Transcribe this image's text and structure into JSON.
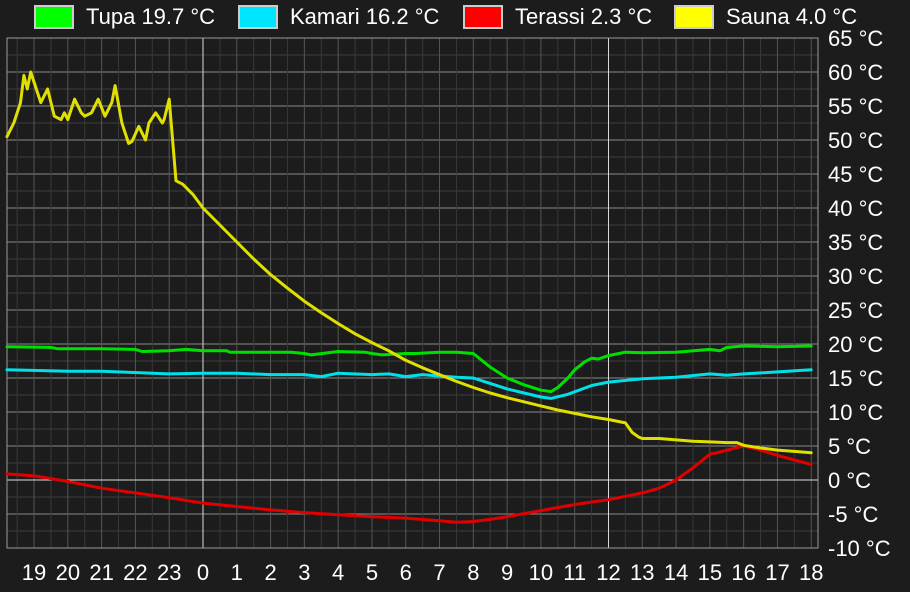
{
  "chart_data": {
    "type": "line",
    "title": "",
    "xlabel": "",
    "ylabel": "",
    "y_unit": "°C",
    "ylim": [
      -10,
      65
    ],
    "y_ticks": [
      "65 °C",
      "60 °C",
      "55 °C",
      "50 °C",
      "45 °C",
      "40 °C",
      "35 °C",
      "30 °C",
      "25 °C",
      "20 °C",
      "15 °C",
      "10 °C",
      "5 °C",
      "0 °C",
      "-5 °C",
      "-10 °C"
    ],
    "x_ticks": [
      "19",
      "20",
      "21",
      "22",
      "23",
      "0",
      "1",
      "2",
      "3",
      "4",
      "5",
      "6",
      "7",
      "8",
      "9",
      "10",
      "11",
      "12",
      "13",
      "14",
      "15",
      "16",
      "17",
      "18"
    ],
    "x_unit": "hour of day (continuous timeline from 18 to 18 next day)",
    "xlim": [
      -5.8,
      18.2
    ],
    "grid": true,
    "legend_position": "top",
    "series": [
      {
        "name": "Tupa",
        "legend": "Tupa 19.7 °C",
        "color": "#00e000",
        "swatch": "#00ff00",
        "x": [
          -5.8,
          -4.5,
          -4.3,
          -3,
          -2,
          -1.8,
          -1,
          -0.5,
          0,
          0.7,
          0.8,
          2,
          2.6,
          3,
          3.2,
          4,
          4.8,
          5,
          5.3,
          6,
          6.3,
          7,
          7.5,
          8,
          8.5,
          9,
          9.5,
          10,
          10.3,
          10.5,
          10.8,
          11,
          11.3,
          11.5,
          11.7,
          12,
          12.5,
          13,
          14,
          15,
          15.3,
          15.5,
          16,
          17,
          18
        ],
        "values": [
          19.6,
          19.5,
          19.3,
          19.3,
          19.2,
          18.9,
          19.0,
          19.2,
          19.0,
          19.0,
          18.8,
          18.8,
          18.8,
          18.6,
          18.4,
          18.9,
          18.8,
          18.6,
          18.4,
          18.6,
          18.6,
          18.8,
          18.8,
          18.6,
          16.6,
          15.0,
          14.0,
          13.2,
          13.0,
          13.6,
          15.0,
          16.2,
          17.4,
          17.9,
          17.8,
          18.3,
          18.8,
          18.7,
          18.8,
          19.2,
          19.0,
          19.5,
          19.7,
          19.6,
          19.7
        ]
      },
      {
        "name": "Kamari",
        "legend": "Kamari 16.2 °C",
        "color": "#00e0e8",
        "swatch": "#00e5ff",
        "x": [
          -5.8,
          -4,
          -3,
          -1,
          0,
          1,
          2,
          3,
          3.5,
          4,
          5,
          5.5,
          6,
          6.5,
          7,
          7.5,
          8,
          8.5,
          9,
          9.5,
          10,
          10.3,
          10.8,
          11.5,
          12,
          13,
          14,
          15,
          15.5,
          16,
          17,
          18
        ],
        "values": [
          16.2,
          16.0,
          16.0,
          15.6,
          15.7,
          15.7,
          15.5,
          15.5,
          15.2,
          15.7,
          15.5,
          15.6,
          15.2,
          15.5,
          15.3,
          15.1,
          15.0,
          14.2,
          13.4,
          12.8,
          12.2,
          12.0,
          12.6,
          13.9,
          14.4,
          14.9,
          15.1,
          15.6,
          15.4,
          15.6,
          15.9,
          16.2
        ]
      },
      {
        "name": "Terassi",
        "legend": "Terassi 2.3 °C",
        "color": "#e00000",
        "swatch": "#ff0000",
        "x": [
          -5.8,
          -5,
          -4,
          -3,
          -2,
          -1,
          0,
          1,
          2,
          3,
          4,
          5,
          6,
          7,
          7.5,
          8,
          8.5,
          9,
          10,
          11,
          12,
          12.5,
          13,
          13.5,
          14,
          14.5,
          15,
          15.2,
          15.5,
          16,
          16.5,
          17,
          18
        ],
        "values": [
          0.9,
          0.6,
          -0.2,
          -1.2,
          -1.9,
          -2.6,
          -3.4,
          -3.9,
          -4.4,
          -4.8,
          -5.1,
          -5.4,
          -5.6,
          -6.0,
          -6.2,
          -6.1,
          -5.8,
          -5.4,
          -4.5,
          -3.6,
          -2.9,
          -2.4,
          -1.9,
          -1.2,
          0.0,
          1.8,
          3.8,
          4.0,
          4.4,
          5.0,
          4.4,
          3.6,
          2.3
        ]
      },
      {
        "name": "Sauna",
        "legend": "Sauna 4.0 °C",
        "color": "#e0e000",
        "swatch": "#ffff00",
        "x": [
          -5.8,
          -5.6,
          -5.4,
          -5.3,
          -5.2,
          -5.1,
          -4.9,
          -4.8,
          -4.6,
          -4.4,
          -4.2,
          -4.1,
          -4,
          -3.8,
          -3.6,
          -3.5,
          -3.3,
          -3.1,
          -2.9,
          -2.7,
          -2.6,
          -2.4,
          -2.2,
          -2.1,
          -1.9,
          -1.7,
          -1.6,
          -1.4,
          -1.2,
          -1.15,
          -1,
          -0.9,
          -0.8,
          -0.6,
          -0.3,
          0,
          0.5,
          1,
          1.5,
          2,
          2.5,
          3,
          3.5,
          4,
          4.5,
          5,
          5.5,
          6,
          6.5,
          7,
          7.5,
          8,
          8.5,
          9,
          9.5,
          10,
          10.5,
          11,
          11.5,
          12,
          12.5,
          12.7,
          12.9,
          13,
          13.5,
          14,
          14.5,
          15,
          15.5,
          15.8,
          16,
          16.5,
          17,
          17.5,
          18
        ],
        "values": [
          50.5,
          52.5,
          55.5,
          59.5,
          57.5,
          60.0,
          57.0,
          55.5,
          57.5,
          53.5,
          53.0,
          54.0,
          53.0,
          56.0,
          54.0,
          53.5,
          54.0,
          56.0,
          53.5,
          55.5,
          58.0,
          52.5,
          49.5,
          49.8,
          52.0,
          50.0,
          52.5,
          54.0,
          52.5,
          53.0,
          56.0,
          50.0,
          44.0,
          43.5,
          42.0,
          40.0,
          37.5,
          35.0,
          32.5,
          30.2,
          28.2,
          26.3,
          24.6,
          23.0,
          21.5,
          20.2,
          19.0,
          17.6,
          16.5,
          15.5,
          14.5,
          13.6,
          12.8,
          12.1,
          11.5,
          10.9,
          10.3,
          9.8,
          9.3,
          8.9,
          8.4,
          7.0,
          6.3,
          6.1,
          6.1,
          5.9,
          5.7,
          5.6,
          5.5,
          5.5,
          5.1,
          4.7,
          4.4,
          4.2,
          4.0
        ]
      }
    ]
  }
}
